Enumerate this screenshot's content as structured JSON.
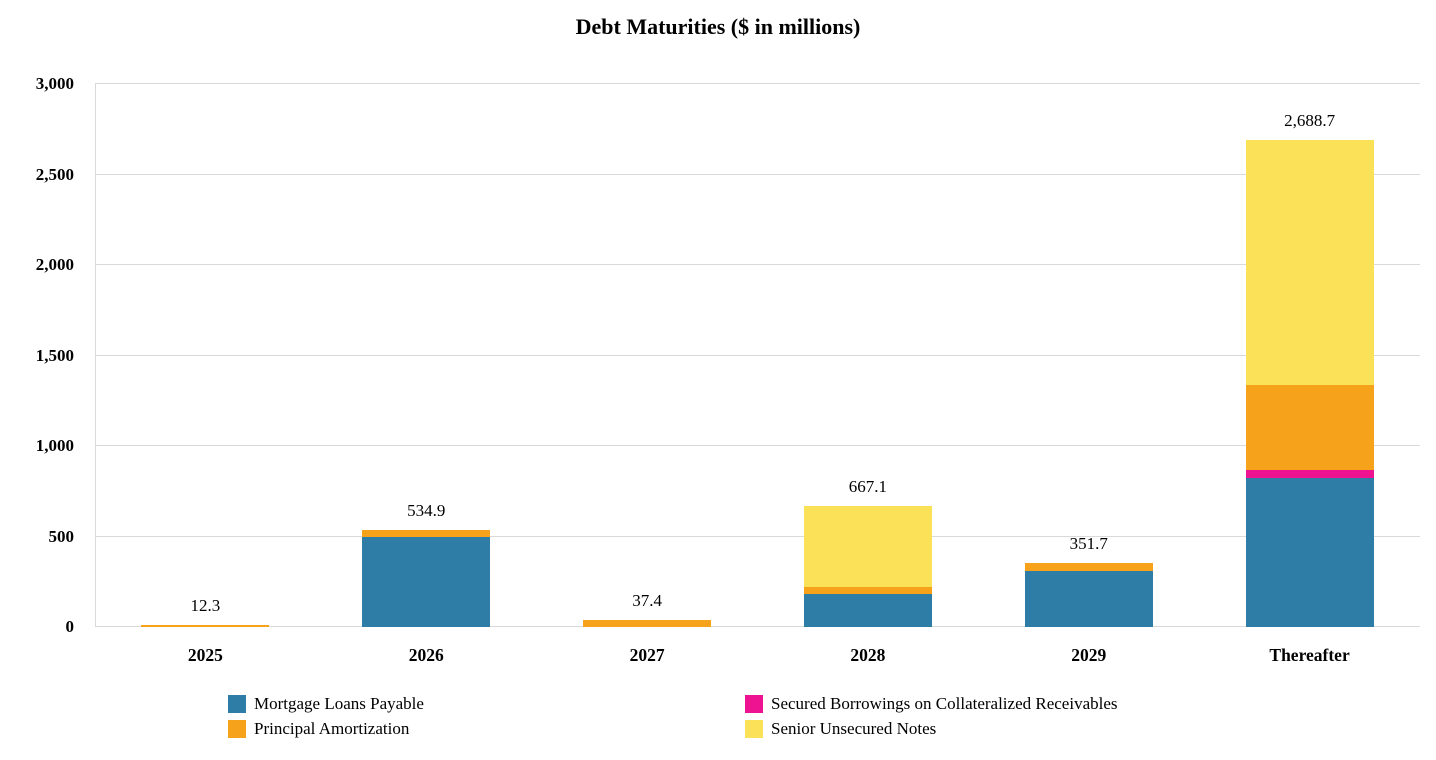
{
  "chart_data": {
    "type": "bar",
    "stacked": true,
    "title": "Debt Maturities ($ in millions)",
    "categories": [
      "2025",
      "2026",
      "2027",
      "2028",
      "2029",
      "Thereafter"
    ],
    "series": [
      {
        "name": "Mortgage Loans Payable",
        "color": "#2E7DA6",
        "values": [
          0,
          494.9,
          0,
          180.0,
          309.7,
          822.0
        ]
      },
      {
        "name": "Secured Borrowings on Collateralized Receivables",
        "color": "#EE1390",
        "values": [
          0,
          0,
          0,
          0,
          0,
          45.0
        ]
      },
      {
        "name": "Principal Amortization",
        "color": "#F6A21B",
        "values": [
          12.3,
          40.0,
          37.4,
          39.0,
          42.0,
          468.0
        ]
      },
      {
        "name": "Senior Unsecured Notes",
        "color": "#FBE158",
        "values": [
          0,
          0,
          0,
          448.1,
          0,
          1353.7
        ]
      }
    ],
    "totals": [
      12.3,
      534.9,
      37.4,
      667.1,
      351.7,
      2688.7
    ],
    "total_labels": [
      "12.3",
      "534.9",
      "37.4",
      "667.1",
      "351.7",
      "2,688.7"
    ],
    "y_axis": {
      "min": 0,
      "max": 3000,
      "tick_step": 500,
      "tick_labels": [
        "0",
        "500",
        "1,000",
        "1,500",
        "2,000",
        "2,500",
        "3,000"
      ]
    },
    "legend": {
      "position": "bottom",
      "columns": [
        [
          "Mortgage Loans Payable",
          "Principal Amortization"
        ],
        [
          "Secured Borrowings on Collateralized Receivables",
          "Senior Unsecured Notes"
        ]
      ]
    },
    "grid": true,
    "background": "#ffffff",
    "gridline_color": "#d9d9d9"
  }
}
